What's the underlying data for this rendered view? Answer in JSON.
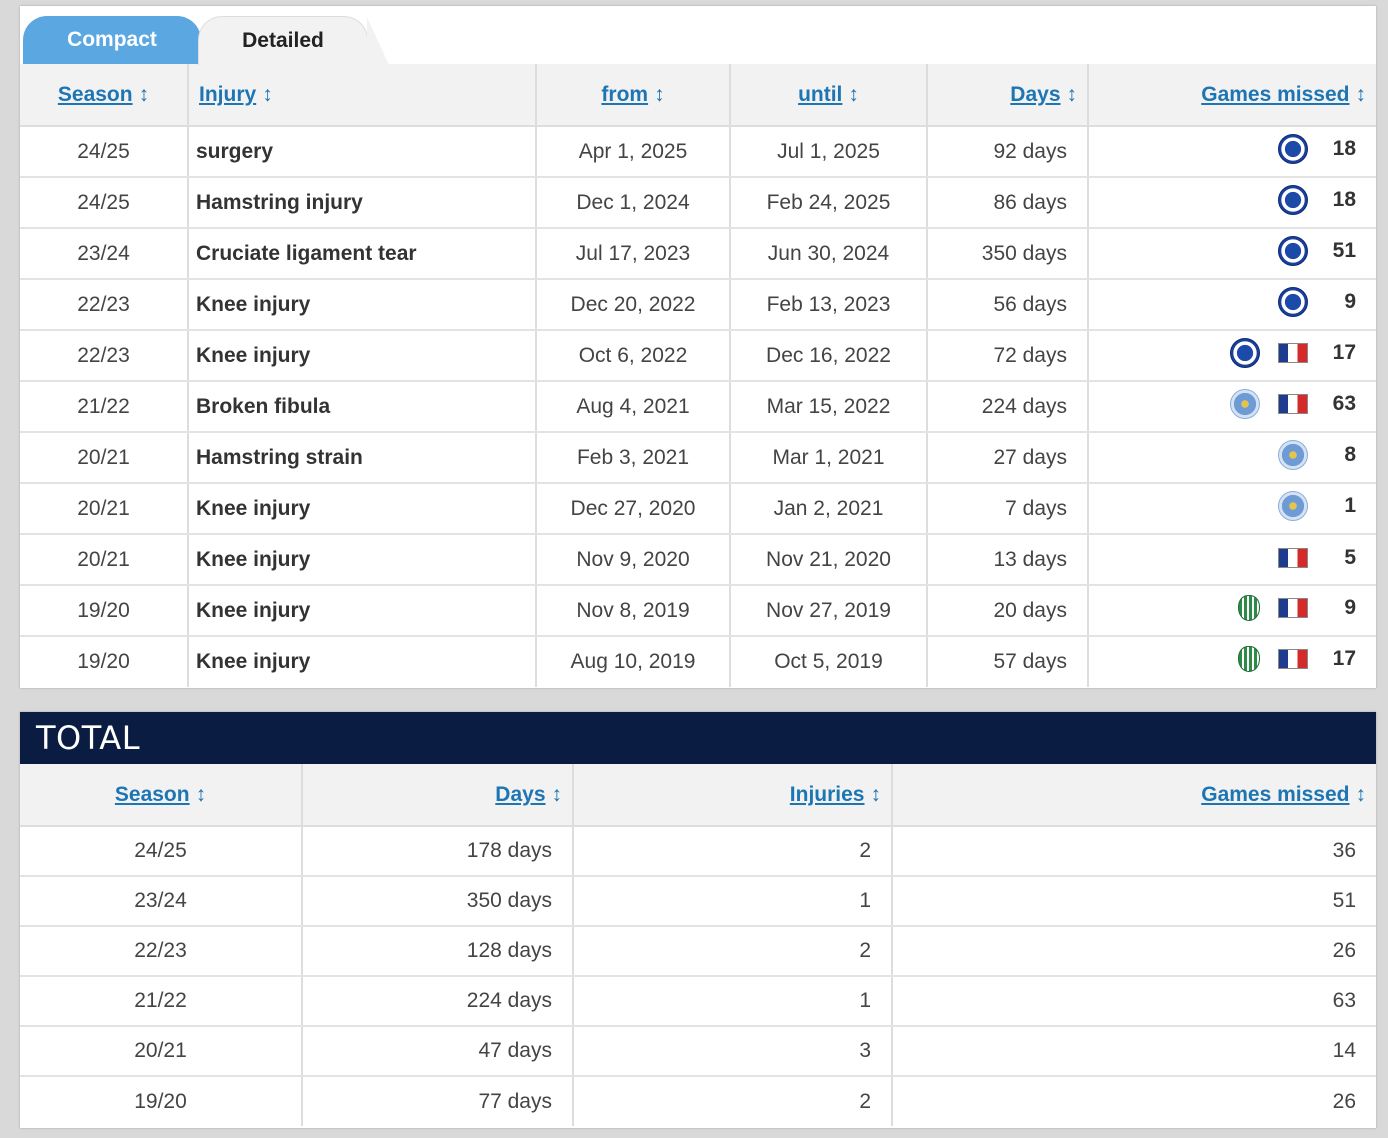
{
  "tabs": [
    {
      "label": "Compact",
      "active": true
    },
    {
      "label": "Detailed",
      "active": false
    }
  ],
  "injuries": {
    "columns": {
      "season": "Season",
      "injury": "Injury",
      "from": "from",
      "until": "until",
      "days": "Days",
      "games_missed": "Games missed"
    },
    "sort_glyph": "↕",
    "rows": [
      {
        "season": "24/25",
        "injury": "surgery",
        "from": "Apr 1, 2025",
        "until": "Jul 1, 2025",
        "days": "92 days",
        "icons": [
          "chelsea-crest"
        ],
        "games": "18"
      },
      {
        "season": "24/25",
        "injury": "Hamstring injury",
        "from": "Dec 1, 2024",
        "until": "Feb 24, 2025",
        "days": "86 days",
        "icons": [
          "chelsea-crest"
        ],
        "games": "18"
      },
      {
        "season": "23/24",
        "injury": "Cruciate ligament tear",
        "from": "Jul 17, 2023",
        "until": "Jun 30, 2024",
        "days": "350 days",
        "icons": [
          "chelsea-crest"
        ],
        "games": "51"
      },
      {
        "season": "22/23",
        "injury": "Knee injury",
        "from": "Dec 20, 2022",
        "until": "Feb 13, 2023",
        "days": "56 days",
        "icons": [
          "chelsea-crest"
        ],
        "games": "9"
      },
      {
        "season": "22/23",
        "injury": "Knee injury",
        "from": "Oct 6, 2022",
        "until": "Dec 16, 2022",
        "days": "72 days",
        "icons": [
          "chelsea-crest",
          "france-flag"
        ],
        "games": "17"
      },
      {
        "season": "21/22",
        "injury": "Broken fibula",
        "from": "Aug 4, 2021",
        "until": "Mar 15, 2022",
        "days": "224 days",
        "icons": [
          "leicester-crest",
          "france-flag"
        ],
        "games": "63"
      },
      {
        "season": "20/21",
        "injury": "Hamstring strain",
        "from": "Feb 3, 2021",
        "until": "Mar 1, 2021",
        "days": "27 days",
        "icons": [
          "leicester-crest"
        ],
        "games": "8"
      },
      {
        "season": "20/21",
        "injury": "Knee injury",
        "from": "Dec 27, 2020",
        "until": "Jan 2, 2021",
        "days": "7 days",
        "icons": [
          "leicester-crest"
        ],
        "games": "1"
      },
      {
        "season": "20/21",
        "injury": "Knee injury",
        "from": "Nov 9, 2020",
        "until": "Nov 21, 2020",
        "days": "13 days",
        "icons": [
          "france-flag"
        ],
        "games": "5"
      },
      {
        "season": "19/20",
        "injury": "Knee injury",
        "from": "Nov 8, 2019",
        "until": "Nov 27, 2019",
        "days": "20 days",
        "icons": [
          "saint-etienne-crest",
          "france-flag"
        ],
        "games": "9"
      },
      {
        "season": "19/20",
        "injury": "Knee injury",
        "from": "Aug 10, 2019",
        "until": "Oct 5, 2019",
        "days": "57 days",
        "icons": [
          "saint-etienne-crest",
          "france-flag"
        ],
        "games": "17"
      }
    ]
  },
  "total": {
    "title": "TOTAL",
    "columns": {
      "season": "Season",
      "days": "Days",
      "injuries": "Injuries",
      "games_missed": "Games missed"
    },
    "rows": [
      {
        "season": "24/25",
        "days": "178 days",
        "injuries": "2",
        "games": "36"
      },
      {
        "season": "23/24",
        "days": "350 days",
        "injuries": "1",
        "games": "51"
      },
      {
        "season": "22/23",
        "days": "128 days",
        "injuries": "2",
        "games": "26"
      },
      {
        "season": "21/22",
        "days": "224 days",
        "injuries": "1",
        "games": "63"
      },
      {
        "season": "20/21",
        "days": "47 days",
        "injuries": "3",
        "games": "14"
      },
      {
        "season": "19/20",
        "days": "77 days",
        "injuries": "2",
        "games": "26"
      }
    ]
  },
  "colors": {
    "tab_active": "#5aa7e2",
    "header_link": "#1d75b3",
    "total_bar": "#0b1c42"
  }
}
